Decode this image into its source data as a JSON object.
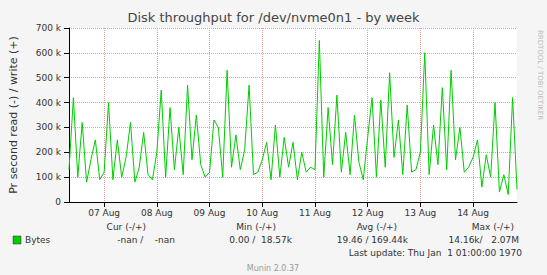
{
  "chart_data": {
    "type": "line",
    "title": "Disk throughput for /dev/nvme0n1 - by week",
    "y_label": "Pr second read (-) / write (+)",
    "categories": [
      null,
      null,
      null,
      null,
      null,
      null,
      null,
      null,
      "07 Aug",
      null,
      null,
      null,
      null,
      null,
      null,
      null,
      null,
      null,
      null,
      null,
      "08 Aug",
      null,
      null,
      null,
      null,
      null,
      null,
      null,
      null,
      null,
      null,
      null,
      "09 Aug",
      null,
      null,
      null,
      null,
      null,
      null,
      null,
      null,
      null,
      null,
      null,
      "10 Aug",
      null,
      null,
      null,
      null,
      null,
      null,
      null,
      null,
      null,
      null,
      null,
      "11 Aug",
      null,
      null,
      null,
      null,
      null,
      null,
      null,
      null,
      null,
      null,
      null,
      "12 Aug",
      null,
      null,
      null,
      null,
      null,
      null,
      null,
      null,
      null,
      null,
      null,
      "13 Aug",
      null,
      null,
      null,
      null,
      null,
      null,
      null,
      null,
      null,
      null,
      null,
      "14 Aug",
      null,
      null,
      null,
      null,
      null,
      null,
      null,
      null,
      null,
      null
    ],
    "series": [
      {
        "name": "Bytes",
        "color": "#00cc00",
        "values": [
          130000,
          420000,
          100000,
          320000,
          80000,
          170000,
          250000,
          90000,
          120000,
          400000,
          90000,
          250000,
          100000,
          180000,
          320000,
          80000,
          140000,
          280000,
          110000,
          90000,
          200000,
          450000,
          100000,
          380000,
          130000,
          300000,
          110000,
          470000,
          170000,
          350000,
          150000,
          100000,
          120000,
          330000,
          300000,
          100000,
          530000,
          140000,
          270000,
          130000,
          210000,
          470000,
          110000,
          120000,
          170000,
          240000,
          90000,
          310000,
          100000,
          260000,
          140000,
          240000,
          90000,
          200000,
          120000,
          140000,
          130000,
          650000,
          100000,
          380000,
          150000,
          430000,
          120000,
          280000,
          110000,
          350000,
          160000,
          90000,
          260000,
          420000,
          100000,
          410000,
          140000,
          520000,
          180000,
          330000,
          110000,
          390000,
          120000,
          130000,
          200000,
          600000,
          110000,
          310000,
          150000,
          460000,
          130000,
          530000,
          170000,
          300000,
          120000,
          140000,
          180000,
          250000,
          60000,
          190000,
          100000,
          400000,
          40000,
          110000,
          30000,
          420000,
          50000
        ]
      }
    ],
    "ylim": [
      0,
      700000
    ],
    "yticks": [
      0,
      {
        "value": 100000,
        "label": "100 k"
      },
      {
        "value": 200000,
        "label": "200 k"
      },
      {
        "value": 300000,
        "label": "300 k"
      },
      {
        "value": 400000,
        "label": "400 k"
      },
      {
        "value": 500000,
        "label": "500 k"
      },
      {
        "value": 600000,
        "label": "600 k"
      },
      {
        "value": 700000,
        "label": "700 k"
      }
    ],
    "grid": true,
    "legend_table": {
      "header": [
        "Cur (-/+)",
        "Min (-/+)",
        "Avg (-/+)",
        "Max (-/+)"
      ],
      "rows": [
        {
          "name": "Bytes",
          "color": "#00cc00",
          "cells": [
            "-nan /    -nan",
            "0.00 /  18.57k",
            "19.46 / 169.44k",
            "14.16k/   2.07M"
          ]
        }
      ]
    },
    "last_update": "Last update: Thu Jan  1 01:00:00 1970",
    "footer": "Munin 2.0.37",
    "watermark": "RRDTOOL / TOBI OETIKER"
  }
}
